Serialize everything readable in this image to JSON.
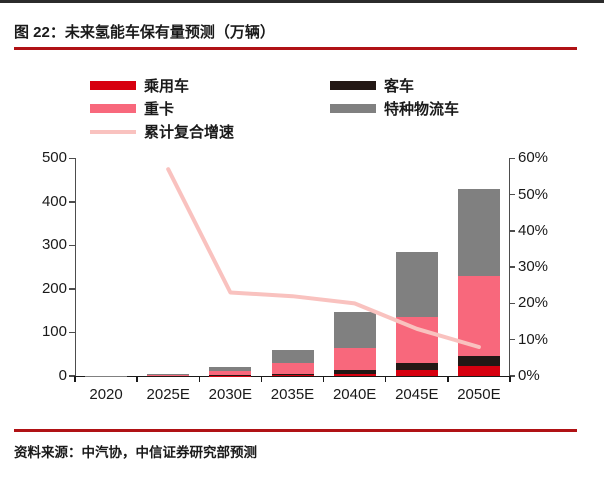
{
  "title": "图 22：未来氢能车保有量预测（万辆）",
  "source": "资料来源：中汽协，中信证券研究部预测",
  "colors": {
    "accent_red": "#b01215",
    "passenger": "#d7000f",
    "bus": "#231815",
    "truck": "#f8687c",
    "logistics": "#808080",
    "cagr_line": "#f9c2bf",
    "axis": "#4d4d4d",
    "text": "#1a1a1a"
  },
  "legend": [
    {
      "label": "乘用车",
      "type": "bar",
      "color_key": "passenger"
    },
    {
      "label": "客车",
      "type": "bar",
      "color_key": "bus"
    },
    {
      "label": "重卡",
      "type": "bar",
      "color_key": "truck"
    },
    {
      "label": "特种物流车",
      "type": "bar",
      "color_key": "logistics"
    },
    {
      "label": "累计复合增速",
      "type": "line",
      "color_key": "cagr_line"
    }
  ],
  "chart_data": {
    "type": "bar",
    "subtype": "stacked-bars-with-line",
    "title": "未来氢能车保有量预测（万辆）",
    "categories": [
      "2020",
      "2025E",
      "2030E",
      "2035E",
      "2040E",
      "2045E",
      "2050E"
    ],
    "series": [
      {
        "name": "乘用车",
        "color_key": "passenger",
        "values": [
          0,
          0.2,
          0.5,
          2,
          5,
          14,
          23
        ]
      },
      {
        "name": "客车",
        "color_key": "bus",
        "values": [
          0.3,
          0.3,
          1,
          3,
          9,
          16,
          23
        ]
      },
      {
        "name": "重卡",
        "color_key": "truck",
        "values": [
          0.3,
          2.5,
          10,
          25,
          50,
          105,
          184
        ]
      },
      {
        "name": "特种物流车",
        "color_key": "logistics",
        "values": [
          0.2,
          2,
          8.5,
          30,
          84,
          150,
          200
        ]
      }
    ],
    "totals": [
      0.8,
      5,
      20,
      60,
      148,
      285,
      430
    ],
    "line_series": {
      "name": "累计复合增速",
      "axis": "right",
      "unit": "%",
      "values": [
        null,
        57,
        23,
        22,
        20,
        13,
        8
      ]
    },
    "left_axis": {
      "min": 0,
      "max": 500,
      "ticks": [
        "0",
        "100",
        "200",
        "300",
        "400",
        "500"
      ]
    },
    "right_axis": {
      "min": 0,
      "max": 60,
      "ticks": [
        "0%",
        "10%",
        "20%",
        "30%",
        "40%",
        "50%",
        "60%"
      ]
    },
    "grid": false,
    "legend_position": "top"
  }
}
